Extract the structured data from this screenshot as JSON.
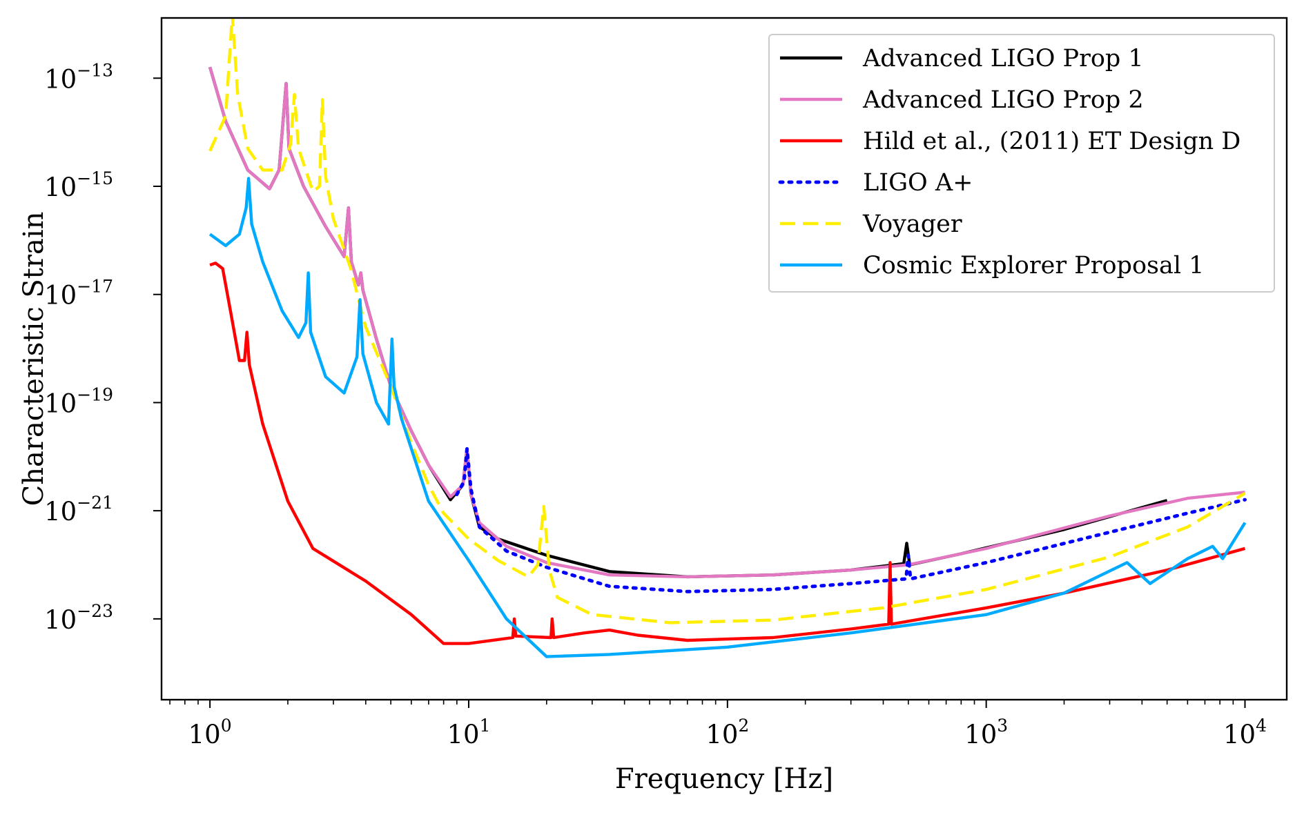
{
  "chart_data": {
    "type": "line",
    "xlabel": "Frequency [Hz]",
    "ylabel": "Characteristic Strain",
    "xscale": "log",
    "yscale": "log",
    "xlim": [
      0.65,
      14500
    ],
    "ylim": [
      3.2e-25,
      1.3e-12
    ],
    "grid": false,
    "legend_position": "top-right",
    "x_ticks": [
      {
        "base": "10",
        "exp": "0",
        "value": 1
      },
      {
        "base": "10",
        "exp": "1",
        "value": 10
      },
      {
        "base": "10",
        "exp": "2",
        "value": 100
      },
      {
        "base": "10",
        "exp": "3",
        "value": 1000
      },
      {
        "base": "10",
        "exp": "4",
        "value": 10000
      }
    ],
    "y_ticks": [
      {
        "base": "10",
        "exp": "−13",
        "value": 1e-13
      },
      {
        "base": "10",
        "exp": "−15",
        "value": 1e-15
      },
      {
        "base": "10",
        "exp": "−17",
        "value": 1e-17
      },
      {
        "base": "10",
        "exp": "−19",
        "value": 1e-19
      },
      {
        "base": "10",
        "exp": "−21",
        "value": 1e-21
      },
      {
        "base": "10",
        "exp": "−23",
        "value": 1e-23
      }
    ],
    "series": [
      {
        "name": "Advanced LIGO Prop 1",
        "color": "#000000",
        "dash": "solid",
        "points": [
          [
            1.0,
            1.6e-13
          ],
          [
            1.15,
            1.6e-14
          ],
          [
            1.4,
            2e-15
          ],
          [
            1.7,
            9e-16
          ],
          [
            1.85,
            2e-15
          ],
          [
            1.97,
            8e-14
          ],
          [
            2.02,
            5e-15
          ],
          [
            2.3,
            1e-15
          ],
          [
            2.8,
            1.8e-16
          ],
          [
            3.3,
            5e-17
          ],
          [
            3.43,
            4e-16
          ],
          [
            3.52,
            4e-17
          ],
          [
            3.75,
            1.5e-17
          ],
          [
            3.83,
            2.5e-17
          ],
          [
            3.9,
            1.2e-17
          ],
          [
            4.4,
            1.5e-18
          ],
          [
            5.0,
            2e-19
          ],
          [
            6.0,
            3e-20
          ],
          [
            7.0,
            7e-21
          ],
          [
            8.5,
            1.6e-21
          ],
          [
            9.5,
            3e-21
          ],
          [
            9.85,
            1.4e-20
          ],
          [
            10.2,
            2e-21
          ],
          [
            11.0,
            5e-22
          ],
          [
            13.0,
            3e-22
          ],
          [
            20.0,
            1.5e-22
          ],
          [
            35.0,
            7.5e-23
          ],
          [
            70.0,
            6e-23
          ],
          [
            150.0,
            6.5e-23
          ],
          [
            300.0,
            8e-23
          ],
          [
            480.0,
            1.05e-22
          ],
          [
            493.0,
            2.5e-22
          ],
          [
            506.0,
            1e-22
          ],
          [
            800.0,
            1.6e-22
          ],
          [
            2000.0,
            4.5e-22
          ],
          [
            5000.0,
            1.55e-21
          ]
        ]
      },
      {
        "name": "Advanced LIGO Prop 2",
        "color": "#e377c2",
        "dash": "solid",
        "points": [
          [
            1.0,
            1.6e-13
          ],
          [
            1.15,
            1.6e-14
          ],
          [
            1.4,
            2e-15
          ],
          [
            1.7,
            9e-16
          ],
          [
            1.85,
            2e-15
          ],
          [
            1.97,
            8e-14
          ],
          [
            2.02,
            5e-15
          ],
          [
            2.3,
            1e-15
          ],
          [
            2.8,
            1.8e-16
          ],
          [
            3.3,
            5e-17
          ],
          [
            3.43,
            4e-16
          ],
          [
            3.52,
            4e-17
          ],
          [
            3.75,
            1.5e-17
          ],
          [
            3.83,
            2.5e-17
          ],
          [
            3.9,
            1.2e-17
          ],
          [
            4.4,
            1.5e-18
          ],
          [
            5.0,
            2e-19
          ],
          [
            6.0,
            3e-20
          ],
          [
            7.0,
            7e-21
          ],
          [
            8.5,
            1.8e-21
          ],
          [
            9.5,
            3e-21
          ],
          [
            9.85,
            1.4e-20
          ],
          [
            10.2,
            2e-21
          ],
          [
            11.0,
            6e-22
          ],
          [
            14.0,
            2.2e-22
          ],
          [
            20.0,
            1.1e-22
          ],
          [
            35.0,
            6.5e-23
          ],
          [
            70.0,
            6e-23
          ],
          [
            150.0,
            6.5e-23
          ],
          [
            300.0,
            8e-23
          ],
          [
            500.0,
            1e-22
          ],
          [
            1000.0,
            2e-22
          ],
          [
            3000.0,
            8e-22
          ],
          [
            6000.0,
            1.7e-21
          ],
          [
            10000.0,
            2.2e-21
          ]
        ]
      },
      {
        "name": "Hild et al., (2011) ET Design D",
        "color": "#ff0000",
        "dash": "solid",
        "points": [
          [
            1.0,
            3.5e-17
          ],
          [
            1.05,
            3.8e-17
          ],
          [
            1.12,
            3e-17
          ],
          [
            1.2,
            5e-18
          ],
          [
            1.3,
            6e-19
          ],
          [
            1.36,
            6e-19
          ],
          [
            1.39,
            2e-18
          ],
          [
            1.42,
            5e-19
          ],
          [
            1.6,
            4e-20
          ],
          [
            2.0,
            1.5e-21
          ],
          [
            2.5,
            2e-22
          ],
          [
            4.0,
            5e-23
          ],
          [
            6.0,
            1.2e-23
          ],
          [
            8.0,
            3.5e-24
          ],
          [
            10.0,
            3.5e-24
          ],
          [
            14.8,
            4.5e-24
          ],
          [
            15.0,
            1e-23
          ],
          [
            15.2,
            4.8e-24
          ],
          [
            20.8,
            4.5e-24
          ],
          [
            21.0,
            1e-23
          ],
          [
            21.3,
            4.5e-24
          ],
          [
            28.0,
            5.5e-24
          ],
          [
            35.0,
            6.2e-24
          ],
          [
            45.0,
            5e-24
          ],
          [
            70.0,
            4e-24
          ],
          [
            150.0,
            4.5e-24
          ],
          [
            300.0,
            6.5e-24
          ],
          [
            420.0,
            8e-24
          ],
          [
            425.0,
            1.1e-22
          ],
          [
            430.0,
            8e-24
          ],
          [
            1000.0,
            1.6e-23
          ],
          [
            2000.0,
            3e-23
          ],
          [
            5000.0,
            8e-23
          ],
          [
            10000.0,
            2e-22
          ]
        ]
      },
      {
        "name": "LIGO A+",
        "color": "#0000ff",
        "dash": "dotted",
        "points": [
          [
            9.0,
            2e-21
          ],
          [
            9.6,
            3.5e-21
          ],
          [
            9.85,
            1.4e-20
          ],
          [
            10.2,
            2.5e-21
          ],
          [
            11.0,
            5e-22
          ],
          [
            14.0,
            1.8e-22
          ],
          [
            20.0,
            9e-23
          ],
          [
            35.0,
            4e-23
          ],
          [
            70.0,
            3.2e-23
          ],
          [
            150.0,
            3.5e-23
          ],
          [
            300.0,
            4.5e-23
          ],
          [
            490.0,
            5.5e-23
          ],
          [
            500.0,
            1.5e-22
          ],
          [
            510.0,
            5.5e-23
          ],
          [
            1000.0,
            1.1e-22
          ],
          [
            3000.0,
            4e-22
          ],
          [
            6000.0,
            9e-22
          ],
          [
            10000.0,
            1.6e-21
          ]
        ]
      },
      {
        "name": "Voyager",
        "color": "#ffee00",
        "dash": "dashed",
        "points": [
          [
            1.0,
            4.5e-15
          ],
          [
            1.15,
            2e-14
          ],
          [
            1.22,
            1.5e-12
          ],
          [
            1.28,
            5e-14
          ],
          [
            1.4,
            5e-15
          ],
          [
            1.6,
            2e-15
          ],
          [
            1.9,
            2e-15
          ],
          [
            2.05,
            6e-15
          ],
          [
            2.12,
            5e-14
          ],
          [
            2.2,
            5e-15
          ],
          [
            2.5,
            8e-16
          ],
          [
            2.65,
            1e-15
          ],
          [
            2.72,
            4e-14
          ],
          [
            2.8,
            1.5e-15
          ],
          [
            3.0,
            2.5e-16
          ],
          [
            3.5,
            3e-17
          ],
          [
            4.0,
            2.5e-18
          ],
          [
            5.0,
            2e-19
          ],
          [
            6.0,
            1.8e-20
          ],
          [
            7.0,
            3e-21
          ],
          [
            8.0,
            9e-22
          ],
          [
            10.0,
            3e-22
          ],
          [
            13.0,
            1.2e-22
          ],
          [
            17.0,
            6e-23
          ],
          [
            18.5,
            1e-22
          ],
          [
            19.5,
            1.2e-21
          ],
          [
            20.5,
            8e-23
          ],
          [
            22.0,
            2.5e-23
          ],
          [
            30.0,
            1.2e-23
          ],
          [
            60.0,
            8.5e-24
          ],
          [
            150.0,
            9.5e-24
          ],
          [
            400.0,
            1.6e-23
          ],
          [
            1000.0,
            3.5e-23
          ],
          [
            3000.0,
            1.4e-22
          ],
          [
            6000.0,
            5e-22
          ],
          [
            10000.0,
            2.1e-21
          ]
        ]
      },
      {
        "name": "Cosmic Explorer Proposal 1",
        "color": "#00aaff",
        "dash": "solid",
        "points": [
          [
            1.0,
            1.3e-16
          ],
          [
            1.15,
            8e-17
          ],
          [
            1.3,
            1.3e-16
          ],
          [
            1.38,
            4e-16
          ],
          [
            1.41,
            1.4e-15
          ],
          [
            1.45,
            2e-16
          ],
          [
            1.6,
            4e-17
          ],
          [
            1.9,
            5e-18
          ],
          [
            2.2,
            1.6e-18
          ],
          [
            2.35,
            3e-18
          ],
          [
            2.4,
            2.5e-17
          ],
          [
            2.45,
            2e-18
          ],
          [
            2.8,
            3e-19
          ],
          [
            3.3,
            1.5e-19
          ],
          [
            3.7,
            7e-19
          ],
          [
            3.8,
            8e-18
          ],
          [
            3.9,
            8e-19
          ],
          [
            4.4,
            1e-19
          ],
          [
            4.9,
            4e-20
          ],
          [
            5.05,
            1.5e-18
          ],
          [
            5.15,
            2e-19
          ],
          [
            5.5,
            5e-20
          ],
          [
            7.0,
            1.5e-21
          ],
          [
            10.0,
            1.2e-22
          ],
          [
            14.0,
            1e-23
          ],
          [
            20.0,
            2e-24
          ],
          [
            35.0,
            2.2e-24
          ],
          [
            100.0,
            3e-24
          ],
          [
            300.0,
            5.5e-24
          ],
          [
            1000.0,
            1.2e-23
          ],
          [
            2000.0,
            3e-23
          ],
          [
            3500.0,
            1.1e-22
          ],
          [
            4300.0,
            4.5e-23
          ],
          [
            6000.0,
            1.3e-22
          ],
          [
            7500.0,
            2.2e-22
          ],
          [
            8200.0,
            1.3e-22
          ],
          [
            10000.0,
            6e-22
          ]
        ]
      }
    ]
  }
}
